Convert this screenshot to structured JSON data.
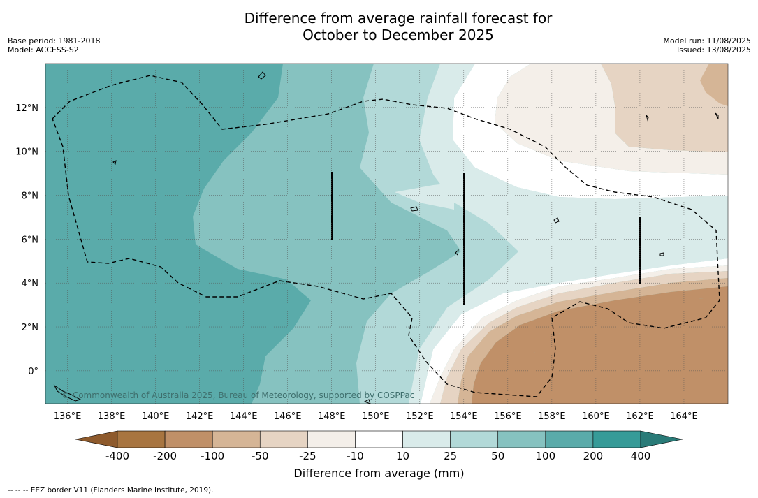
{
  "title": {
    "line1": "Difference from average rainfall forecast for",
    "line2": "October to December 2025"
  },
  "meta_left": {
    "base_period": "Base period: 1981-2018",
    "model": "Model: ACCESS-S2"
  },
  "meta_right": {
    "model_run": "Model run: 11/08/2025",
    "issued": "Issued: 13/08/2025"
  },
  "map": {
    "lon_range": [
      135,
      166
    ],
    "lat_range": [
      -1.5,
      14
    ],
    "lon_ticks": [
      "136°E",
      "138°E",
      "140°E",
      "142°E",
      "144°E",
      "146°E",
      "148°E",
      "150°E",
      "152°E",
      "154°E",
      "156°E",
      "158°E",
      "160°E",
      "162°E",
      "164°E"
    ],
    "lat_ticks": [
      "12°N",
      "10°N",
      "8°N",
      "6°N",
      "4°N",
      "2°N",
      "0°"
    ],
    "copyright": "© Commonwealth of Australia 2025, Bureau of Meteorology, supported by COSPPac"
  },
  "colorbar": {
    "label": "Difference from average (mm)",
    "ticks": [
      "-400",
      "-200",
      "-100",
      "-50",
      "-25",
      "-10",
      "10",
      "25",
      "50",
      "100",
      "200",
      "400"
    ],
    "under_color": "#8e5a2c",
    "over_color": "#2a7b78",
    "colors": [
      "#a87540",
      "#c09068",
      "#d5b596",
      "#e6d4c3",
      "#f4efe9",
      "#ffffff",
      "#d9ebea",
      "#b2d9d8",
      "#86c2c0",
      "#5aabaa",
      "#369b98"
    ]
  },
  "legend_footnote": "--  --  -- EEZ border V11 (Flanders Marine Institute, 2019)."
}
